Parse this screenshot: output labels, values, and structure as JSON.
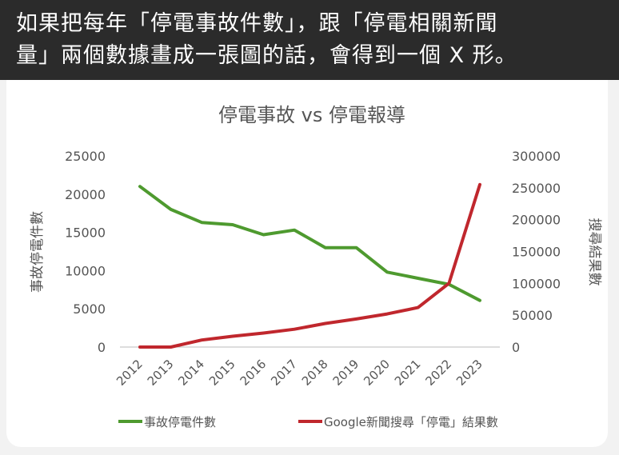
{
  "caption": {
    "line1": "如果把每年「停電事故件數」，跟「停電相關新聞",
    "line2": "量」兩個數據畫成一張圖的話，會得到一個 X 形。"
  },
  "colors": {
    "green": "#4e9a2f",
    "red": "#c0272d",
    "axis_text": "#555555"
  },
  "chart_data": {
    "type": "line",
    "title": "停電事故 vs 停電報導",
    "x": [
      "2012",
      "2013",
      "2014",
      "2015",
      "2016",
      "2017",
      "2018",
      "2019",
      "2020",
      "2021",
      "2022",
      "2023"
    ],
    "ylabel_left": "事故停電件數",
    "ylabel_right": "搜尋結果數",
    "ylim_left": [
      0,
      25000
    ],
    "ylim_right": [
      0,
      300000
    ],
    "yticks_left": [
      "25000",
      "20000",
      "15000",
      "10000",
      "5000",
      "0"
    ],
    "yticks_right": [
      "300000",
      "250000",
      "200000",
      "150000",
      "100000",
      "50000",
      "0"
    ],
    "series": [
      {
        "name": "事故停電件數",
        "axis": "left",
        "color": "#4e9a2f",
        "values": [
          21000,
          18000,
          16300,
          16000,
          14700,
          15300,
          13000,
          13000,
          9800,
          9000,
          8200,
          6100
        ]
      },
      {
        "name": "Google新聞搜尋「停電」結果數",
        "axis": "right",
        "color": "#c0272d",
        "values": [
          0,
          0,
          11000,
          17000,
          22000,
          28000,
          37000,
          44000,
          52000,
          62000,
          100000,
          255000
        ]
      }
    ],
    "legend_position": "bottom",
    "grid": false
  }
}
